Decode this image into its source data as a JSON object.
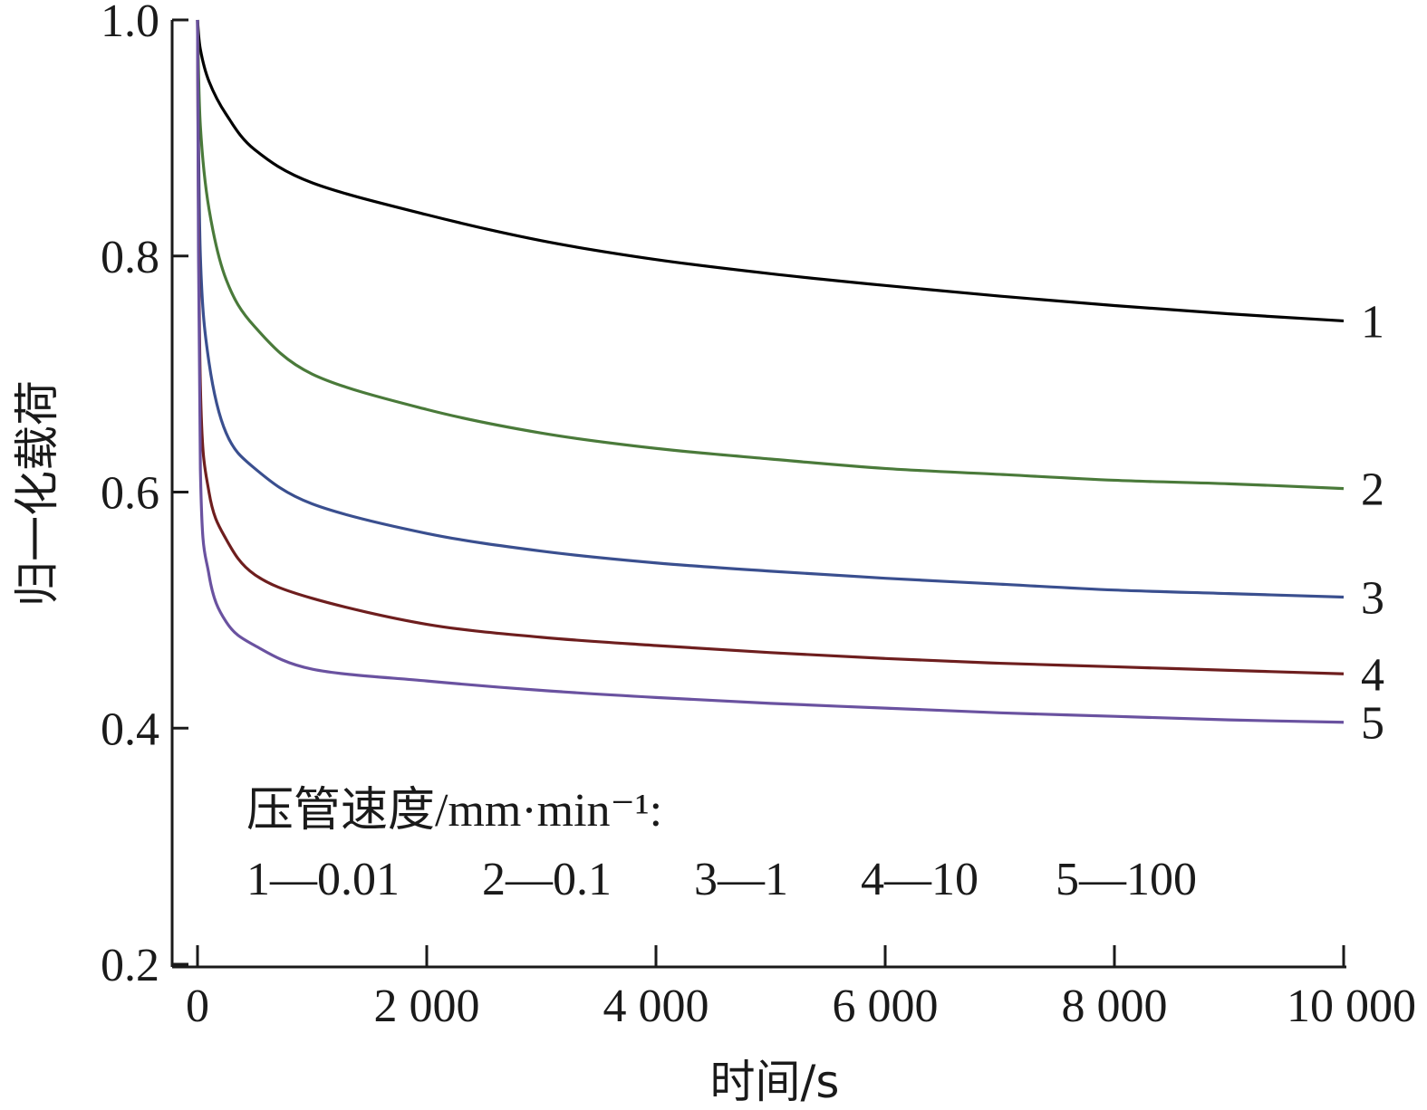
{
  "chart_data": {
    "type": "line",
    "xlabel": "时间/s",
    "ylabel": "归一化载荷",
    "xlim": [
      0,
      10000
    ],
    "ylim": [
      0.2,
      1.0
    ],
    "x_ticks": [
      0,
      2000,
      4000,
      6000,
      8000,
      10000
    ],
    "x_tick_labels": [
      "0",
      "2 000",
      "4 000",
      "6 000",
      "8 000",
      "10 000"
    ],
    "y_ticks": [
      0.2,
      0.4,
      0.6,
      0.8,
      1.0
    ],
    "y_tick_labels": [
      "0.2",
      "0.4",
      "0.6",
      "0.8",
      "1.0"
    ],
    "grid": false,
    "legend": {
      "title": "压管速度/mm·min⁻¹:",
      "entries": [
        "1—0.01",
        "2—0.1",
        "3—1",
        "4—10",
        "5—100"
      ],
      "placement": "bottom-left"
    },
    "series": [
      {
        "label": "1",
        "color": "#000000",
        "x": [
          0,
          25,
          100,
          250,
          500,
          1000,
          2000,
          3000,
          4000,
          5000,
          6000,
          7000,
          8000,
          9000,
          10000
        ],
        "values": [
          1.0,
          0.975,
          0.948,
          0.92,
          0.89,
          0.862,
          0.835,
          0.813,
          0.797,
          0.785,
          0.775,
          0.766,
          0.758,
          0.751,
          0.745
        ]
      },
      {
        "label": "2",
        "color": "#4a7a3a",
        "x": [
          0,
          25,
          100,
          250,
          500,
          1000,
          2000,
          3000,
          4000,
          5000,
          6000,
          7000,
          8000,
          9000,
          10000
        ],
        "values": [
          1.0,
          0.91,
          0.84,
          0.78,
          0.74,
          0.7,
          0.67,
          0.65,
          0.637,
          0.628,
          0.62,
          0.615,
          0.61,
          0.607,
          0.603
        ]
      },
      {
        "label": "3",
        "color": "#3a4f8f",
        "x": [
          0,
          25,
          100,
          250,
          500,
          1000,
          2000,
          3000,
          4000,
          5000,
          6000,
          7000,
          8000,
          9000,
          10000
        ],
        "values": [
          1.0,
          0.8,
          0.71,
          0.65,
          0.62,
          0.59,
          0.565,
          0.55,
          0.54,
          0.533,
          0.527,
          0.522,
          0.517,
          0.514,
          0.511
        ]
      },
      {
        "label": "4",
        "color": "#6e1e1e",
        "x": [
          0,
          25,
          100,
          250,
          500,
          1000,
          2000,
          3000,
          4000,
          5000,
          6000,
          7000,
          8000,
          9000,
          10000
        ],
        "values": [
          1.0,
          0.69,
          0.6,
          0.56,
          0.53,
          0.51,
          0.488,
          0.477,
          0.47,
          0.464,
          0.459,
          0.455,
          0.452,
          0.449,
          0.446
        ]
      },
      {
        "label": "5",
        "color": "#6a52a0",
        "x": [
          0,
          25,
          100,
          250,
          500,
          1000,
          2000,
          3000,
          4000,
          5000,
          6000,
          7000,
          8000,
          9000,
          10000
        ],
        "values": [
          1.0,
          0.62,
          0.53,
          0.49,
          0.47,
          0.45,
          0.44,
          0.432,
          0.426,
          0.421,
          0.417,
          0.413,
          0.41,
          0.407,
          0.405
        ]
      }
    ]
  }
}
